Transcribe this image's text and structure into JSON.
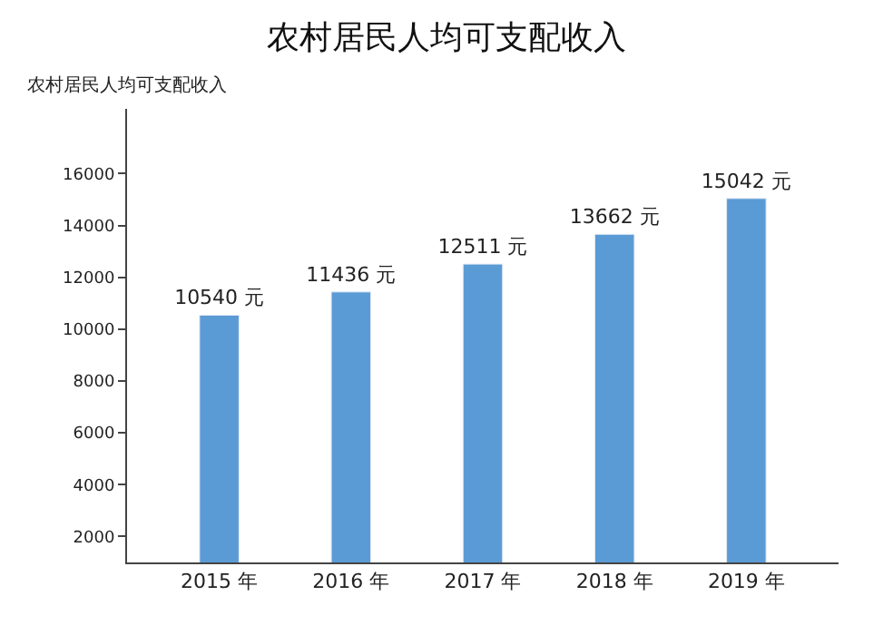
{
  "chart_data": {
    "type": "bar",
    "title": "农村居民人均可支配收入",
    "ylabel": "农村居民人均可支配收入",
    "categories": [
      "2015 年",
      "2016 年",
      "2017 年",
      "2018 年",
      "2019 年"
    ],
    "series": [
      {
        "color": "#5b9bd5",
        "values": [
          10540,
          11436,
          12511,
          13662,
          15042
        ],
        "value_labels": [
          "10540 元",
          "11436 元",
          "12511 元",
          "13662 元",
          "15042 元"
        ]
      }
    ],
    "ylim": [
      1000,
      18500
    ],
    "yticks": [
      2000,
      4000,
      6000,
      8000,
      10000,
      12000,
      14000,
      16000
    ]
  }
}
